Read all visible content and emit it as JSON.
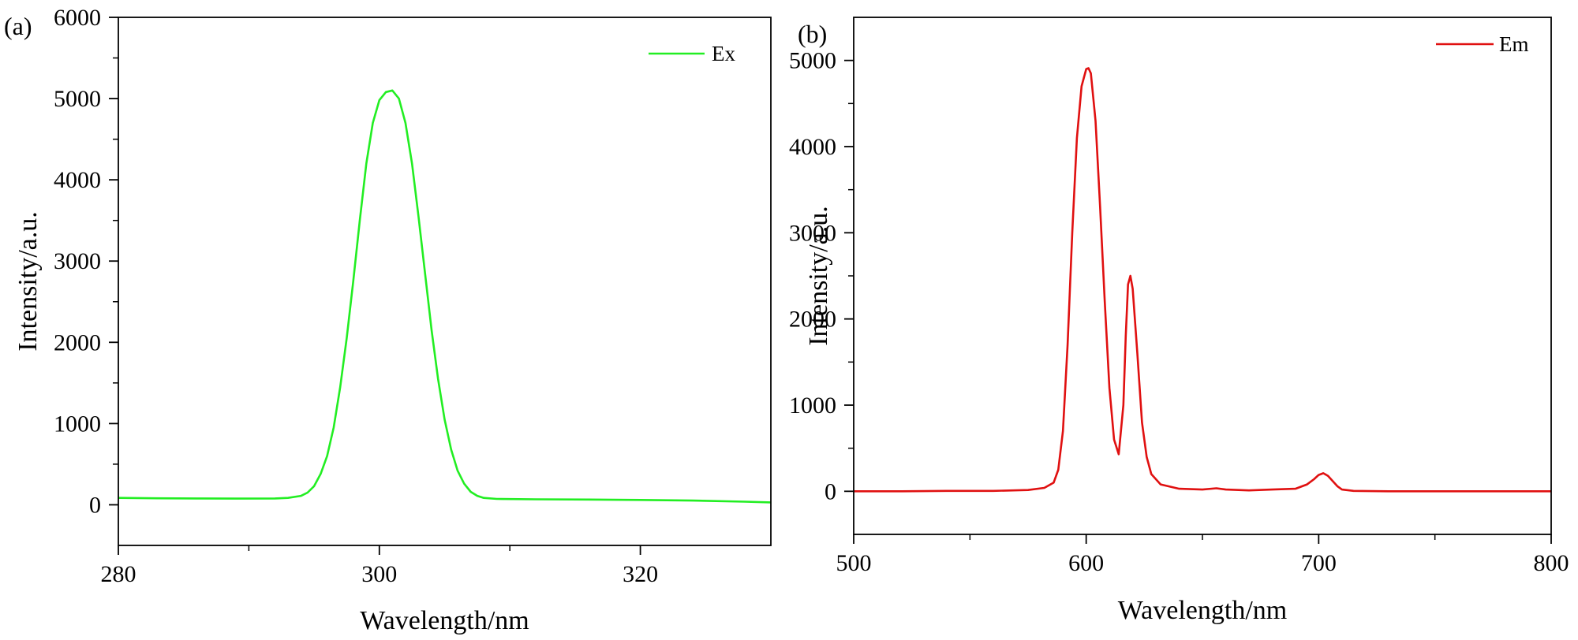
{
  "chart_data": [
    {
      "type": "line",
      "panel_label": "(a)",
      "xlabel": "Wavelength/nm",
      "ylabel": "Intensity/a.u.",
      "xlim": [
        280,
        330
      ],
      "ylim": [
        -500,
        6000
      ],
      "xticks": [
        280,
        300,
        320
      ],
      "xminor": [
        290,
        310
      ],
      "yticks": [
        0,
        1000,
        2000,
        3000,
        4000,
        5000,
        6000
      ],
      "yminor": [
        500,
        1500,
        2500,
        3500,
        4500,
        5500
      ],
      "legend_position": "top-right",
      "series": [
        {
          "name": "Ex",
          "color": "#22ee22",
          "x": [
            280,
            283,
            286,
            289,
            292,
            293,
            294,
            294.5,
            295,
            295.5,
            296,
            296.5,
            297,
            297.5,
            298,
            298.5,
            299,
            299.5,
            300,
            300.5,
            301,
            301.5,
            302,
            302.5,
            303,
            303.5,
            304,
            304.5,
            305,
            305.5,
            306,
            306.5,
            307,
            307.5,
            308,
            309,
            312,
            316,
            320,
            324,
            328,
            330
          ],
          "values": [
            85,
            80,
            78,
            76,
            78,
            85,
            110,
            150,
            230,
            380,
            600,
            950,
            1450,
            2050,
            2750,
            3500,
            4200,
            4700,
            4980,
            5080,
            5100,
            5000,
            4700,
            4200,
            3550,
            2850,
            2150,
            1550,
            1050,
            680,
            420,
            260,
            160,
            110,
            85,
            72,
            68,
            65,
            60,
            52,
            38,
            30
          ]
        }
      ]
    },
    {
      "type": "line",
      "panel_label": "(b)",
      "xlabel": "Wavelength/nm",
      "ylabel": "Intensity/a.u.",
      "xlim": [
        500,
        800
      ],
      "ylim": [
        -500,
        5500
      ],
      "xticks": [
        500,
        600,
        700,
        800
      ],
      "xminor": [
        550,
        650,
        750
      ],
      "yticks": [
        0,
        1000,
        2000,
        3000,
        4000,
        5000
      ],
      "yminor": [
        500,
        1500,
        2500,
        3500,
        4500
      ],
      "legend_position": "top-right",
      "series": [
        {
          "name": "Em",
          "color": "#e01010",
          "x": [
            500,
            520,
            540,
            560,
            575,
            582,
            586,
            588,
            590,
            592,
            594,
            596,
            598,
            600,
            601,
            602,
            604,
            606,
            608,
            610,
            612,
            614,
            616,
            617,
            618,
            619,
            620,
            622,
            624,
            626,
            628,
            632,
            640,
            650,
            656,
            660,
            670,
            680,
            690,
            695,
            698,
            700,
            702,
            704,
            706,
            708,
            710,
            715,
            730,
            760,
            800
          ],
          "values": [
            0,
            0,
            5,
            5,
            15,
            40,
            100,
            250,
            700,
            1700,
            3000,
            4100,
            4700,
            4900,
            4910,
            4850,
            4300,
            3300,
            2200,
            1200,
            600,
            430,
            1000,
            1800,
            2400,
            2500,
            2350,
            1600,
            800,
            400,
            200,
            80,
            30,
            20,
            35,
            20,
            10,
            20,
            30,
            80,
            140,
            190,
            210,
            180,
            120,
            60,
            20,
            5,
            0,
            0,
            0
          ]
        }
      ]
    }
  ]
}
